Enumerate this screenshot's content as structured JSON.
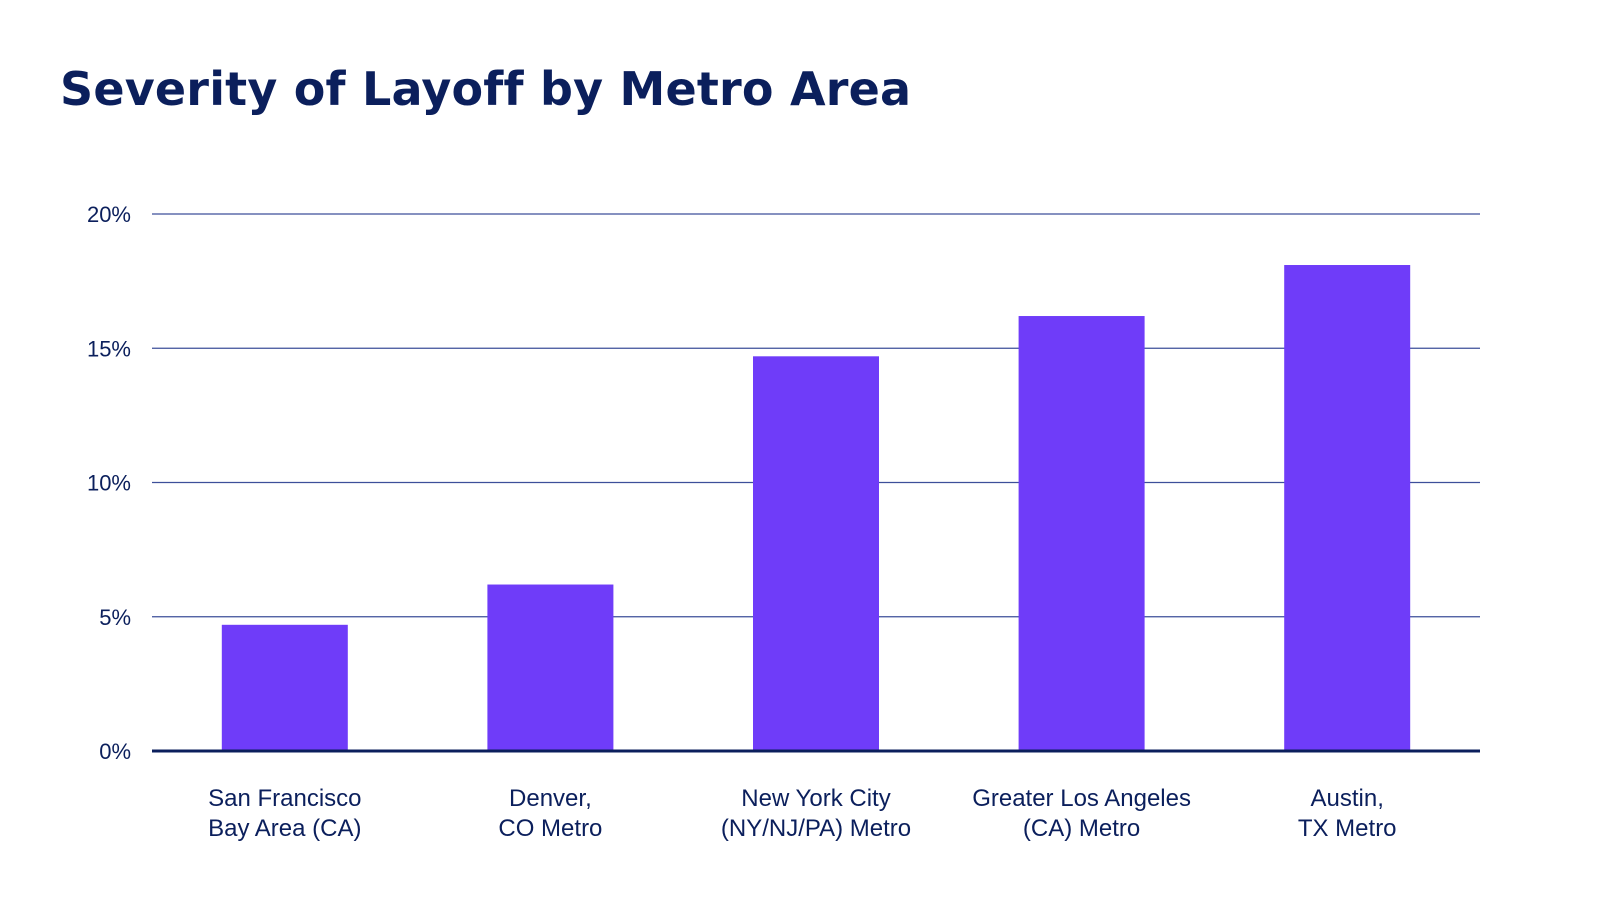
{
  "colors": {
    "bar": "#6f3cf9",
    "text": "#0b1f5c",
    "grid": "#3d4f9a",
    "axis": "#0b1f5c",
    "background": "#ffffff"
  },
  "chart_data": {
    "type": "bar",
    "title": "Severity of Layoff by Metro Area",
    "xlabel": "",
    "ylabel": "",
    "categories": [
      [
        "San Francisco",
        "Bay Area (CA)"
      ],
      [
        "Denver,",
        "CO Metro"
      ],
      [
        "New York City",
        "(NY/NJ/PA) Metro"
      ],
      [
        "Greater Los Angeles",
        "(CA) Metro"
      ],
      [
        "Austin,",
        "TX Metro"
      ]
    ],
    "values": [
      4.7,
      6.2,
      14.7,
      16.2,
      18.1
    ],
    "ylim": [
      0,
      20
    ],
    "yticks": [
      0,
      5,
      10,
      15,
      20
    ],
    "ytick_labels": [
      "0%",
      "5%",
      "10%",
      "15%",
      "20%"
    ],
    "grid": true,
    "legend": "none"
  }
}
